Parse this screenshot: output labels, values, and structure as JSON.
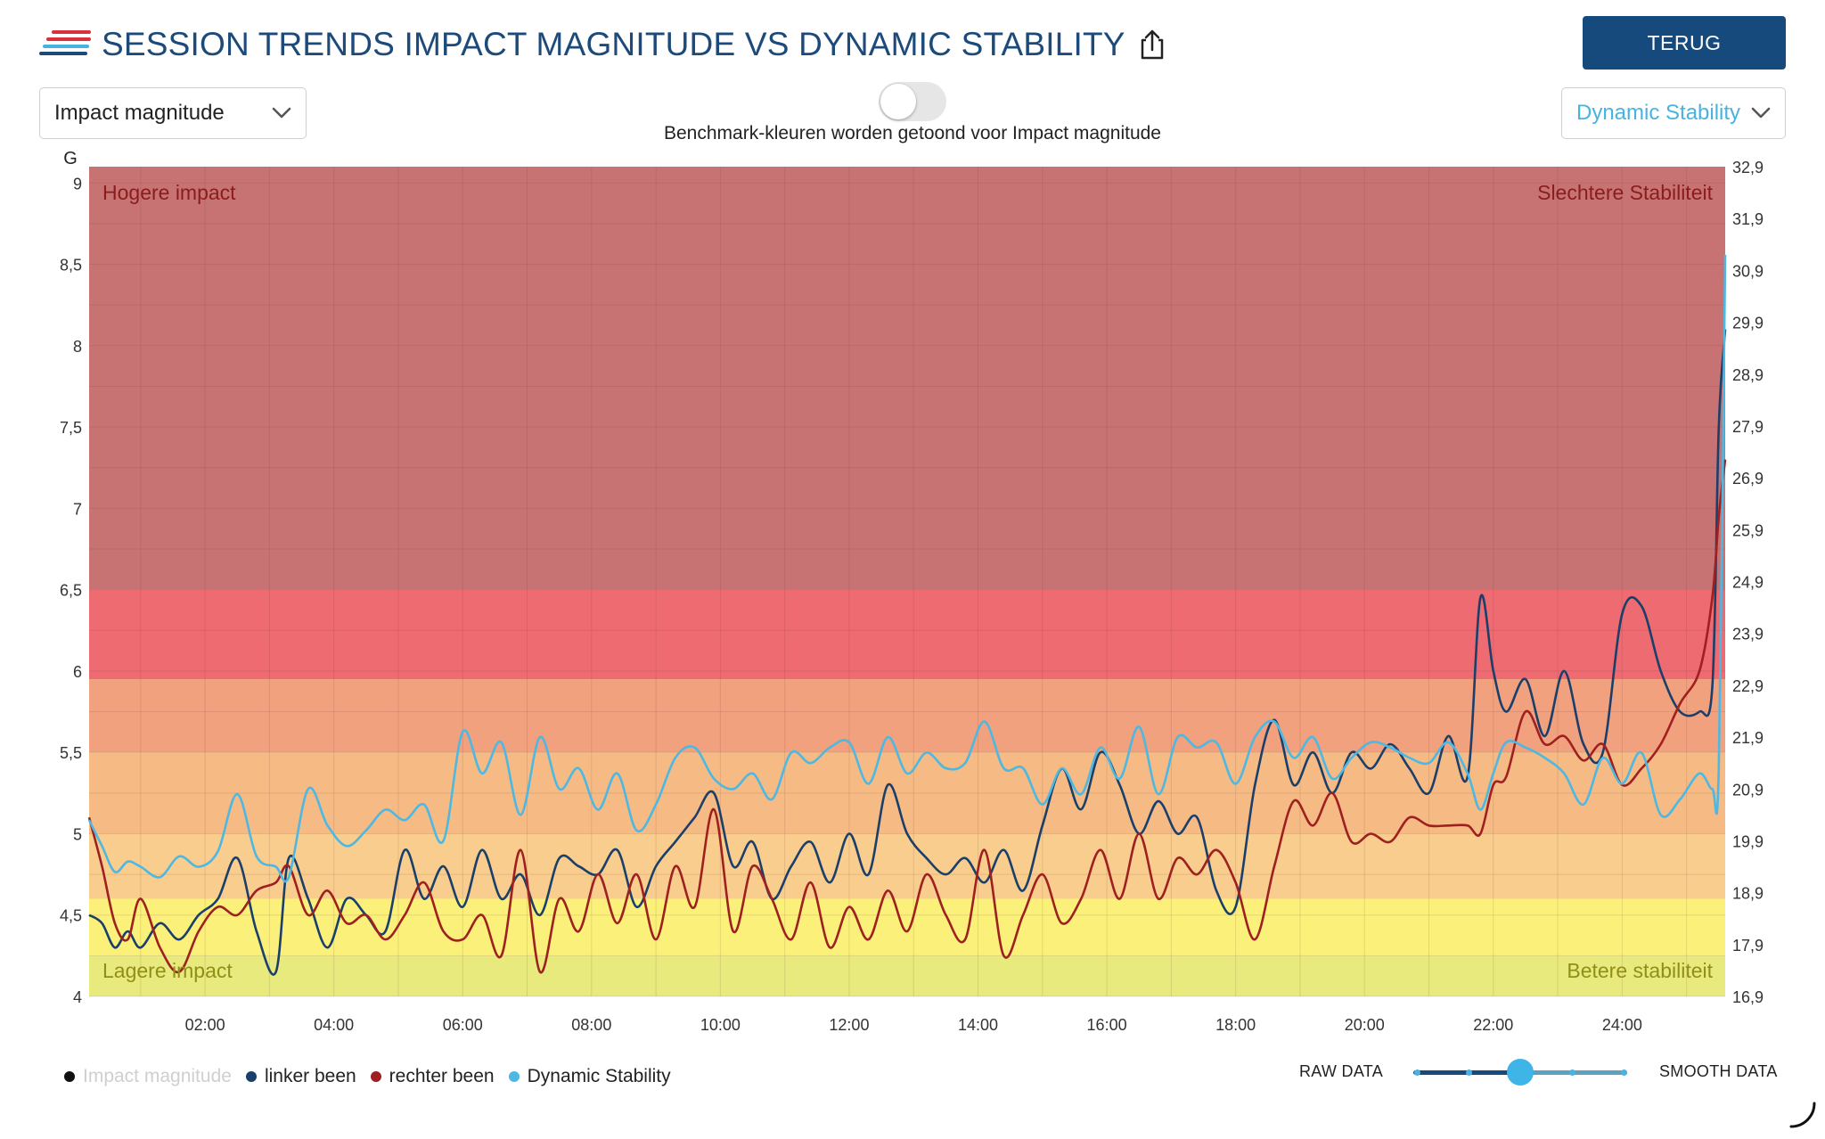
{
  "header": {
    "title": "SESSION TRENDS IMPACT MAGNITUDE VS DYNAMIC STABILITY",
    "back_label": "TERUG"
  },
  "controls": {
    "left_select": "Impact magnitude",
    "right_select": "Dynamic Stability",
    "toggle_on": false,
    "toggle_caption": "Benchmark-kleuren worden getoond voor Impact magnitude"
  },
  "legend": {
    "items": [
      {
        "label": "Impact magnitude",
        "color": "#111111",
        "active": false
      },
      {
        "label": "linker been",
        "color": "#1b3f6b",
        "active": true
      },
      {
        "label": "rechter been",
        "color": "#9e2020",
        "active": true
      },
      {
        "label": "Dynamic Stability",
        "color": "#4cb8e3",
        "active": true
      }
    ]
  },
  "smoothing": {
    "raw_label": "RAW DATA",
    "smooth_label": "SMOOTH DATA",
    "steps": 5,
    "level": 3
  },
  "colors": {
    "accent": "#174a7c",
    "title": "#1c4a7a",
    "stability": "#48b3e0"
  },
  "chart_data": {
    "type": "line",
    "y_unit": "G",
    "ylim_left": [
      4,
      9.1
    ],
    "ylim_right": [
      16.9,
      32.9
    ],
    "xlim": [
      0.2,
      25.6
    ],
    "left_ticks": [
      "9",
      "8,5",
      "8",
      "7,5",
      "7",
      "6,5",
      "6",
      "5,5",
      "5",
      "4,5",
      "4"
    ],
    "right_ticks": [
      "32,9",
      "31,9",
      "30,9",
      "29,9",
      "28,9",
      "27,9",
      "26,9",
      "25,9",
      "24,9",
      "23,9",
      "22,9",
      "21,9",
      "20,9",
      "19,9",
      "18,9",
      "17,9",
      "16,9"
    ],
    "x_ticks": [
      "02:00",
      "04:00",
      "06:00",
      "08:00",
      "10:00",
      "12:00",
      "14:00",
      "16:00",
      "18:00",
      "20:00",
      "22:00",
      "24:00"
    ],
    "annotations": {
      "top_left": "Hogere impact",
      "top_right": "Slechtere Stabiliteit",
      "bottom_left": "Lagere impact",
      "bottom_right": "Betere stabiliteit"
    },
    "benchmark_bands": [
      {
        "from": 6.5,
        "to": 9.1,
        "color": "#c87373"
      },
      {
        "from": 5.95,
        "to": 6.5,
        "color": "#ee6b72"
      },
      {
        "from": 5.5,
        "to": 5.95,
        "color": "#f1a17e"
      },
      {
        "from": 5.0,
        "to": 5.5,
        "color": "#f6bb84"
      },
      {
        "from": 4.6,
        "to": 5.0,
        "color": "#f9cd8e"
      },
      {
        "from": 4.25,
        "to": 4.6,
        "color": "#fbf17a"
      },
      {
        "from": 4.0,
        "to": 4.25,
        "color": "#e8ea7e"
      }
    ],
    "series": [
      {
        "name": "linker been",
        "color": "#1b3f6b",
        "axis": "left",
        "x": [
          0.2,
          0.4,
          0.6,
          0.8,
          1.0,
          1.3,
          1.6,
          1.9,
          2.2,
          2.5,
          2.8,
          3.1,
          3.3,
          3.6,
          3.9,
          4.2,
          4.5,
          4.8,
          5.1,
          5.4,
          5.7,
          6.0,
          6.3,
          6.6,
          6.9,
          7.2,
          7.5,
          7.8,
          8.1,
          8.4,
          8.7,
          9.0,
          9.3,
          9.6,
          9.9,
          10.2,
          10.5,
          10.8,
          11.1,
          11.4,
          11.7,
          12.0,
          12.3,
          12.6,
          12.9,
          13.2,
          13.5,
          13.8,
          14.1,
          14.4,
          14.7,
          15.0,
          15.3,
          15.6,
          15.9,
          16.2,
          16.5,
          16.8,
          17.1,
          17.4,
          17.7,
          18.0,
          18.3,
          18.6,
          18.9,
          19.2,
          19.5,
          19.8,
          20.1,
          20.4,
          20.7,
          21.0,
          21.3,
          21.6,
          21.8,
          22.0,
          22.2,
          22.5,
          22.8,
          23.1,
          23.4,
          23.7,
          24.0,
          24.3,
          24.6,
          24.9,
          25.2,
          25.4,
          25.5,
          25.6
        ],
        "values": [
          4.5,
          4.45,
          4.3,
          4.4,
          4.3,
          4.45,
          4.35,
          4.5,
          4.6,
          4.85,
          4.4,
          4.15,
          4.85,
          4.6,
          4.3,
          4.6,
          4.5,
          4.4,
          4.9,
          4.6,
          4.8,
          4.55,
          4.9,
          4.6,
          4.75,
          4.5,
          4.85,
          4.8,
          4.75,
          4.9,
          4.55,
          4.8,
          4.95,
          5.1,
          5.25,
          4.8,
          4.95,
          4.6,
          4.8,
          4.95,
          4.7,
          5.0,
          4.75,
          5.3,
          5.0,
          4.85,
          4.75,
          4.85,
          4.7,
          4.9,
          4.65,
          5.05,
          5.4,
          5.15,
          5.5,
          5.3,
          5.0,
          5.2,
          5.0,
          5.1,
          4.65,
          4.55,
          5.3,
          5.7,
          5.3,
          5.5,
          5.25,
          5.5,
          5.4,
          5.55,
          5.4,
          5.25,
          5.6,
          5.35,
          6.45,
          6.0,
          5.75,
          5.95,
          5.6,
          6.0,
          5.55,
          5.5,
          6.35,
          6.4,
          6.0,
          5.75,
          5.75,
          5.9,
          7.5,
          8.1
        ]
      },
      {
        "name": "rechter been",
        "color": "#9e2020",
        "axis": "left",
        "x": [
          0.2,
          0.4,
          0.6,
          0.8,
          1.0,
          1.3,
          1.6,
          1.9,
          2.2,
          2.5,
          2.8,
          3.1,
          3.3,
          3.6,
          3.9,
          4.2,
          4.5,
          4.8,
          5.1,
          5.4,
          5.7,
          6.0,
          6.3,
          6.6,
          6.9,
          7.2,
          7.5,
          7.8,
          8.1,
          8.4,
          8.7,
          9.0,
          9.3,
          9.6,
          9.9,
          10.2,
          10.5,
          10.8,
          11.1,
          11.4,
          11.7,
          12.0,
          12.3,
          12.6,
          12.9,
          13.2,
          13.5,
          13.8,
          14.1,
          14.4,
          14.7,
          15.0,
          15.3,
          15.6,
          15.9,
          16.2,
          16.5,
          16.8,
          17.1,
          17.4,
          17.7,
          18.0,
          18.3,
          18.6,
          18.9,
          19.2,
          19.5,
          19.8,
          20.1,
          20.4,
          20.7,
          21.0,
          21.3,
          21.6,
          21.8,
          22.0,
          22.2,
          22.5,
          22.8,
          23.1,
          23.4,
          23.7,
          24.0,
          24.3,
          24.6,
          24.9,
          25.2,
          25.4,
          25.5,
          25.6
        ],
        "values": [
          5.1,
          4.8,
          4.45,
          4.35,
          4.6,
          4.3,
          4.15,
          4.4,
          4.55,
          4.5,
          4.65,
          4.7,
          4.8,
          4.5,
          4.65,
          4.45,
          4.5,
          4.35,
          4.5,
          4.7,
          4.4,
          4.35,
          4.5,
          4.25,
          4.9,
          4.15,
          4.6,
          4.4,
          4.75,
          4.45,
          4.75,
          4.35,
          4.8,
          4.55,
          5.15,
          4.4,
          4.8,
          4.6,
          4.35,
          4.7,
          4.3,
          4.55,
          4.35,
          4.65,
          4.4,
          4.75,
          4.5,
          4.35,
          4.9,
          4.25,
          4.5,
          4.75,
          4.45,
          4.6,
          4.9,
          4.6,
          5.0,
          4.6,
          4.85,
          4.75,
          4.9,
          4.7,
          4.35,
          4.8,
          5.2,
          5.05,
          5.25,
          4.95,
          5.0,
          4.95,
          5.1,
          5.05,
          5.05,
          5.05,
          5.0,
          5.3,
          5.35,
          5.75,
          5.55,
          5.6,
          5.45,
          5.55,
          5.3,
          5.4,
          5.55,
          5.8,
          6.0,
          6.45,
          6.95,
          7.3
        ]
      },
      {
        "name": "Dynamic Stability",
        "color": "#4cb8e3",
        "axis": "right",
        "x": [
          0.2,
          0.4,
          0.6,
          0.8,
          1.0,
          1.3,
          1.6,
          1.9,
          2.2,
          2.5,
          2.8,
          3.1,
          3.3,
          3.6,
          3.9,
          4.2,
          4.5,
          4.8,
          5.1,
          5.4,
          5.7,
          6.0,
          6.3,
          6.6,
          6.9,
          7.2,
          7.5,
          7.8,
          8.1,
          8.4,
          8.7,
          9.0,
          9.3,
          9.6,
          9.9,
          10.2,
          10.5,
          10.8,
          11.1,
          11.4,
          11.7,
          12.0,
          12.3,
          12.6,
          12.9,
          13.2,
          13.5,
          13.8,
          14.1,
          14.4,
          14.7,
          15.0,
          15.3,
          15.6,
          15.9,
          16.2,
          16.5,
          16.8,
          17.1,
          17.4,
          17.7,
          18.0,
          18.3,
          18.6,
          18.9,
          19.2,
          19.5,
          19.8,
          20.1,
          20.4,
          20.7,
          21.0,
          21.3,
          21.6,
          21.8,
          22.0,
          22.2,
          22.5,
          22.8,
          23.1,
          23.4,
          23.7,
          24.0,
          24.3,
          24.6,
          24.9,
          25.2,
          25.4,
          25.5,
          25.6
        ],
        "values": [
          20.3,
          19.8,
          19.3,
          19.5,
          19.4,
          19.2,
          19.6,
          19.4,
          19.7,
          20.8,
          19.6,
          19.4,
          19.2,
          20.9,
          20.2,
          19.8,
          20.1,
          20.5,
          20.3,
          20.6,
          19.9,
          22.0,
          21.2,
          21.8,
          20.4,
          21.9,
          20.9,
          21.3,
          20.5,
          21.2,
          20.1,
          20.6,
          21.5,
          21.7,
          21.1,
          20.9,
          21.2,
          20.7,
          21.6,
          21.4,
          21.7,
          21.8,
          21.0,
          21.9,
          21.2,
          21.6,
          21.3,
          21.4,
          22.2,
          21.3,
          21.3,
          20.6,
          21.3,
          20.8,
          21.7,
          21.1,
          22.1,
          20.8,
          21.9,
          21.7,
          21.8,
          21.0,
          21.9,
          22.2,
          21.5,
          21.9,
          21.1,
          21.5,
          21.8,
          21.7,
          21.5,
          21.4,
          21.8,
          21.2,
          20.5,
          21.2,
          21.8,
          21.7,
          21.5,
          21.2,
          20.6,
          21.5,
          21.0,
          21.6,
          20.4,
          20.7,
          21.2,
          20.9,
          21.3,
          31.2
        ]
      }
    ]
  }
}
